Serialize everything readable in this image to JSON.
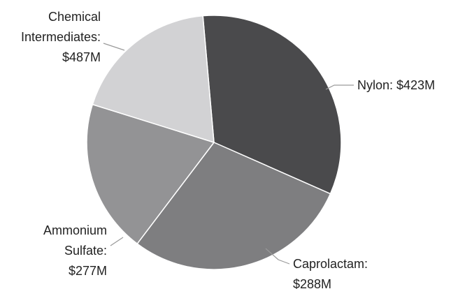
{
  "chart_data": {
    "type": "pie",
    "title": "",
    "start_angle_deg": -95,
    "direction": "clockwise",
    "slices": [
      {
        "name": "Chemical Intermediates",
        "value": 487,
        "value_label": "$487M",
        "label_lines": [
          "Chemical",
          "Intermediates:",
          "$487M"
        ],
        "color": "#4a4a4c"
      },
      {
        "name": "Nylon",
        "value": 423,
        "value_label": "$423M",
        "label_lines": [
          "Nylon: $423M"
        ],
        "color": "#7e7e80"
      },
      {
        "name": "Caprolactam",
        "value": 288,
        "value_label": "$288M",
        "label_lines": [
          "Caprolactam:",
          "$288M"
        ],
        "color": "#939395"
      },
      {
        "name": "Ammonium Sulfate",
        "value": 277,
        "value_label": "$277M",
        "label_lines": [
          "Ammonium",
          "Sulfate:",
          "$277M"
        ],
        "color": "#d2d2d4"
      }
    ],
    "legend": "none",
    "labels": "outside with leader lines"
  }
}
